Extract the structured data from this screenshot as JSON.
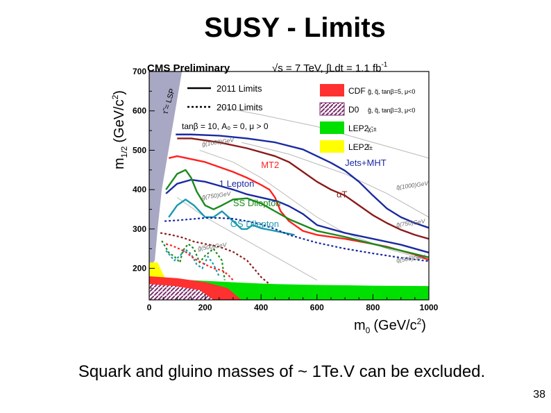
{
  "slide": {
    "title": "SUSY - Limits",
    "caption": "Squark and gluino masses of ~ 1Te.V can be excluded.",
    "page_number": "38"
  },
  "chart_data": {
    "type": "line",
    "header_left": "CMS Preliminary",
    "header_energy": "√s = 7 TeV, ∫Ldt = 1.1 fb",
    "header_energy_sup": "-1",
    "xlabel": "m",
    "xlabel_sub": "0",
    "xlabel_unit": "(GeV/c",
    "xlabel_unit_sup": "2",
    "xlabel_unit_close": ")",
    "ylabel": "m",
    "ylabel_sub": "1/2",
    "ylabel_unit": "(GeV/c",
    "ylabel_unit_sup": "2",
    "ylabel_unit_close": ")",
    "xlim": [
      0,
      1000
    ],
    "ylim": [
      120,
      700
    ],
    "xticks": [
      "0",
      "200",
      "400",
      "600",
      "800",
      "1000"
    ],
    "yticks": [
      "200",
      "300",
      "400",
      "500",
      "600",
      "700"
    ],
    "region_label": "τ̃ = LSP",
    "legend_lines": [
      {
        "style": "solid",
        "label": "2011 Limits"
      },
      {
        "style": "dotted",
        "label": "2010 Limits"
      },
      {
        "style": "text",
        "label": "tanβ = 10,  A₀ = 0,  μ > 0"
      }
    ],
    "legend_boxes": [
      {
        "exp": "CDF",
        "note": "g̃, q̃, tanβ=5, μ<0",
        "color": "#ff3030"
      },
      {
        "exp": "D0",
        "note": "g̃, q̃, tanβ=3, μ<0",
        "color": "#7a2a6a"
      },
      {
        "exp": "LEP2",
        "note": "χ̃₁±",
        "color": "#00e000"
      },
      {
        "exp": "LEP2",
        "note": "l̃±",
        "color": "#ffff00"
      }
    ],
    "contour_labels": [
      {
        "text": "g̃(1000)GeV",
        "x": 190,
        "y": 510
      },
      {
        "text": "q̃(1000)GeV",
        "x": 885,
        "y": 400
      },
      {
        "text": "g̃(750)GeV",
        "x": 190,
        "y": 375
      },
      {
        "text": "q̃(750)GeV",
        "x": 885,
        "y": 305
      },
      {
        "text": "g̃(500)GeV",
        "x": 175,
        "y": 245
      },
      {
        "text": "q̃(500)GeV",
        "x": 885,
        "y": 215
      }
    ],
    "series": [
      {
        "name": "Jets+MHT",
        "color": "#1a2aa0",
        "style": "solid",
        "label": "Jets+MHT",
        "label_at": [
          700,
          460
        ],
        "x": [
          95,
          150,
          250,
          350,
          450,
          550,
          600,
          650,
          700,
          750,
          800,
          850,
          900,
          950,
          1000
        ],
        "y": [
          540,
          540,
          537,
          530,
          520,
          502,
          485,
          468,
          448,
          420,
          385,
          352,
          330,
          315,
          303
        ]
      },
      {
        "name": "alphaT",
        "color": "#8a1a1a",
        "style": "solid",
        "label": "αT",
        "label_at": [
          670,
          380
        ],
        "x": [
          100,
          150,
          250,
          350,
          450,
          500,
          550,
          600,
          650,
          700,
          750,
          800,
          850,
          900,
          950,
          1000
        ],
        "y": [
          530,
          530,
          520,
          505,
          485,
          470,
          445,
          420,
          400,
          385,
          360,
          335,
          315,
          298,
          285,
          275
        ]
      },
      {
        "name": "MT2",
        "color": "#ff2020",
        "style": "solid",
        "label": "MT2",
        "label_at": [
          400,
          455
        ],
        "x": [
          70,
          100,
          200,
          300,
          350,
          400,
          430,
          450,
          470,
          500,
          550,
          600,
          700,
          800,
          850,
          900,
          950,
          1000
        ],
        "y": [
          480,
          485,
          470,
          445,
          430,
          412,
          400,
          380,
          345,
          320,
          295,
          285,
          275,
          262,
          255,
          245,
          235,
          222
        ]
      },
      {
        "name": "1 Lepton",
        "color": "#1a2aa0",
        "style": "solid",
        "label": "1 Lepton",
        "label_at": [
          250,
          407
        ],
        "x": [
          60,
          100,
          150,
          200,
          250,
          300,
          350,
          400,
          430,
          460,
          500,
          550,
          600,
          700,
          800,
          900,
          1000
        ],
        "y": [
          390,
          415,
          425,
          420,
          410,
          400,
          388,
          380,
          375,
          370,
          358,
          338,
          310,
          290,
          275,
          260,
          240
        ]
      },
      {
        "name": "SS Dilepton",
        "color": "#1a8a1a",
        "style": "solid",
        "label": "SS Dilepton",
        "label_at": [
          300,
          358
        ],
        "x": [
          60,
          100,
          130,
          150,
          170,
          200,
          230,
          260,
          300,
          350,
          380,
          400,
          450,
          500,
          600,
          700,
          800,
          900,
          1000
        ],
        "y": [
          400,
          440,
          450,
          430,
          395,
          360,
          350,
          360,
          375,
          378,
          370,
          365,
          345,
          325,
          295,
          280,
          262,
          245,
          228
        ]
      },
      {
        "name": "OS Dilepton",
        "color": "#1a9ab0",
        "style": "solid",
        "label": "OS Dilepton",
        "label_at": [
          290,
          305
        ],
        "x": [
          70,
          100,
          130,
          160,
          200,
          230,
          260,
          300,
          330,
          350,
          370,
          400,
          450,
          520
        ],
        "y": [
          330,
          360,
          375,
          360,
          330,
          330,
          345,
          320,
          300,
          300,
          310,
          302,
          295,
          285
        ]
      },
      {
        "name": "2010 Jets+MHT",
        "color": "#1a2aa0",
        "style": "dotted",
        "x": [
          55,
          100,
          150,
          200,
          250,
          300,
          350,
          400,
          450,
          500,
          600,
          700,
          800,
          900,
          1000
        ],
        "y": [
          320,
          322,
          325,
          328,
          328,
          326,
          320,
          312,
          300,
          285,
          265,
          250,
          238,
          227,
          218
        ]
      },
      {
        "name": "2010 alphaT",
        "color": "#8a1a1a",
        "style": "dotted",
        "x": [
          40,
          80,
          120,
          160,
          200,
          250,
          300,
          350,
          380,
          400,
          430
        ],
        "y": [
          290,
          285,
          278,
          268,
          262,
          255,
          242,
          220,
          195,
          178,
          160
        ]
      },
      {
        "name": "2010 SS Dilepton",
        "color": "#1a8a1a",
        "style": "dotted",
        "x": [
          45,
          70,
          90,
          110,
          120,
          140,
          160,
          180,
          200,
          230,
          260,
          270
        ],
        "y": [
          270,
          240,
          230,
          215,
          245,
          262,
          250,
          215,
          232,
          250,
          220,
          170
        ]
      },
      {
        "name": "2010 OS Dilepton",
        "color": "#1a9ab0",
        "style": "dotted",
        "x": [
          60,
          90,
          110,
          130,
          150,
          170,
          190,
          210,
          230,
          250
        ],
        "y": [
          245,
          220,
          232,
          248,
          236,
          210,
          200,
          230,
          210,
          180
        ]
      },
      {
        "name": "2010 1 Lepton",
        "color": "#ff2020",
        "style": "dotted",
        "x": [
          60,
          80,
          100,
          130,
          160,
          200,
          230,
          260,
          280,
          300
        ],
        "y": [
          262,
          258,
          252,
          242,
          225,
          210,
          200,
          195,
          185,
          170
        ]
      }
    ],
    "excluded_regions": [
      {
        "name": "tau LSP",
        "color": "#a8a8c4",
        "x": [
          0,
          0,
          117,
          45,
          30,
          20,
          0
        ],
        "y": [
          120,
          700,
          700,
          400,
          300,
          220,
          200
        ]
      },
      {
        "name": "LEP2 chargino",
        "color": "#00e000",
        "x": [
          0,
          150,
          350,
          450,
          600,
          800,
          1000,
          1000,
          0
        ],
        "y": [
          175,
          170,
          163,
          160,
          158,
          156,
          155,
          120,
          120
        ]
      },
      {
        "name": "LEP2 slepton",
        "color": "#ffff00",
        "x": [
          0,
          0,
          30,
          50,
          70,
          0
        ],
        "y": [
          120,
          215,
          215,
          185,
          160,
          120
        ]
      },
      {
        "name": "CDF",
        "color": "#ff3030",
        "x": [
          0,
          0,
          100,
          200,
          280,
          330,
          0
        ],
        "y": [
          120,
          180,
          175,
          165,
          150,
          120,
          120
        ]
      },
      {
        "name": "D0",
        "color": "#7a2a6a",
        "x": [
          0,
          0,
          90,
          180,
          230,
          0
        ],
        "y": [
          120,
          160,
          155,
          145,
          120,
          120
        ]
      }
    ],
    "guide_curves": [
      {
        "x": [
          250,
          400,
          600,
          800,
          1000
        ],
        "y": [
          610,
          590,
          560,
          520,
          480
        ]
      },
      {
        "x": [
          330,
          500,
          700,
          850,
          1000
        ],
        "y": [
          520,
          490,
          440,
          390,
          330
        ]
      },
      {
        "x": [
          180,
          300,
          400,
          500,
          600,
          700,
          850,
          1000
        ],
        "y": [
          500,
          470,
          430,
          380,
          330,
          290,
          250,
          220
        ]
      },
      {
        "x": [
          100,
          200,
          300,
          400,
          500,
          600
        ],
        "y": [
          380,
          330,
          290,
          250,
          210,
          170
        ]
      }
    ]
  }
}
